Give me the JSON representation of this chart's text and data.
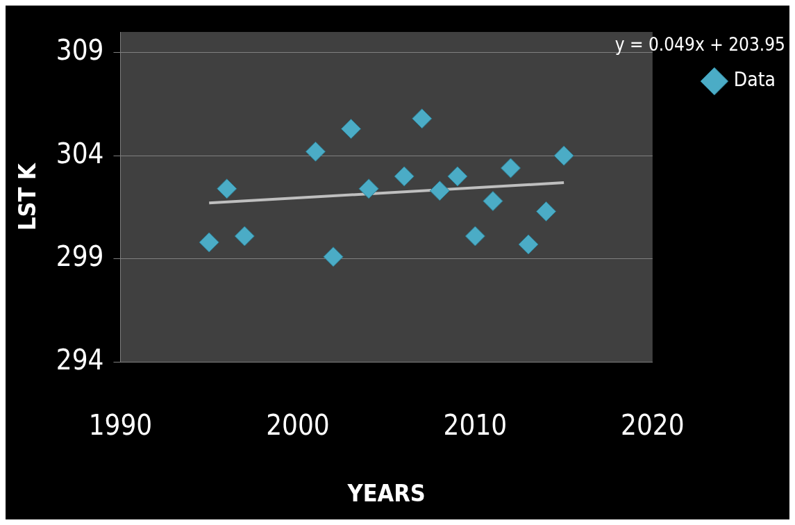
{
  "chart_data": {
    "type": "scatter",
    "xlabel": "YEARS",
    "ylabel": "LST K",
    "annotations": [
      "y = 0.049x + 203.95"
    ],
    "x": [
      1995,
      1996,
      1997,
      2001,
      2002,
      2003,
      2004,
      2006,
      2007,
      2008,
      2009,
      2010,
      2011,
      2012,
      2013,
      2014,
      2015
    ],
    "series": [
      {
        "name": "Data",
        "type": "scatter",
        "marker": "diamond",
        "color": "#4bacc6",
        "values": [
          299.8,
          302.4,
          300.1,
          304.2,
          299.1,
          305.3,
          302.4,
          303.0,
          305.8,
          302.3,
          303.0,
          300.1,
          301.8,
          303.4,
          299.7,
          301.3,
          304.0
        ]
      },
      {
        "type": "line",
        "marker": "none",
        "color": "#bfbfbf",
        "x": [
          1995,
          2015
        ],
        "values": [
          301.71,
          302.69
        ]
      }
    ],
    "xlim": [
      1990,
      2020
    ],
    "xticks": [
      1990,
      2000,
      2010,
      2020
    ],
    "ylim": [
      294,
      310
    ],
    "yticks": [
      294,
      299,
      304,
      309
    ],
    "grid": "y",
    "legend": "right"
  }
}
